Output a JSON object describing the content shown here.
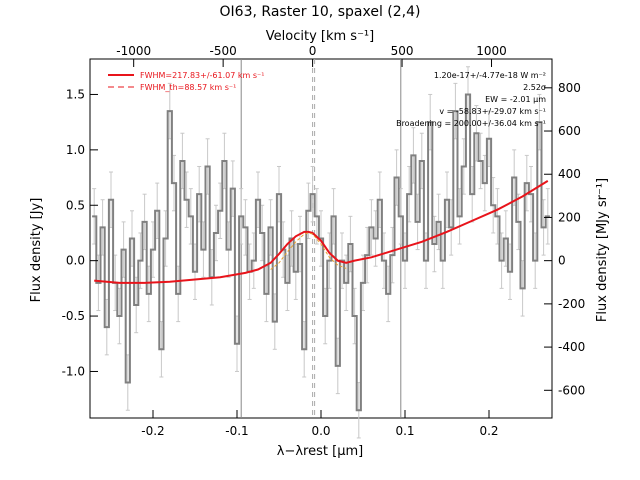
{
  "chart_data": {
    "type": "line",
    "title": "OI63, Raster 10, spaxel (2,4)",
    "xlabel": "λ−λrest [μm]",
    "ylabel_left": "Flux density [Jy]",
    "ylabel_right": "Flux density [MJy sr⁻¹]",
    "xlabel_top": "Velocity [km s⁻¹]",
    "xlim": [
      -0.275,
      0.275
    ],
    "ylim": [
      -1.42,
      1.82
    ],
    "top_velocity_ticks": [
      -1000,
      -500,
      0,
      500,
      1000
    ],
    "right_ticks": [
      -600,
      -400,
      -200,
      0,
      200,
      400,
      600,
      800
    ],
    "x_ticks": [
      -0.2,
      -0.1,
      0.0,
      0.1,
      0.2
    ],
    "y_ticks": [
      -1.0,
      -0.5,
      0.0,
      0.5,
      1.0,
      1.5
    ],
    "vertical_lines": [
      -0.095,
      0.095
    ],
    "legend": [
      {
        "label": "FWHM=217.83+/-61.07 km s⁻¹",
        "style": "solid",
        "color": "#e8141b"
      },
      {
        "label": "FWHM_th=88.57 km s⁻¹",
        "style": "dashed",
        "color": "#e8141b"
      }
    ],
    "annotations": [
      "1.20e-17+/-4.77e-18 W m⁻²",
      "2.52σ",
      "EW = -2.01 μm",
      "v = -58.83+/-29.07 km s⁻¹",
      "Broadening = 200.00+/-36.04 km s⁻¹"
    ],
    "series": [
      {
        "name": "data",
        "x": [
          -0.27,
          -0.265,
          -0.26,
          -0.255,
          -0.25,
          -0.245,
          -0.24,
          -0.235,
          -0.23,
          -0.225,
          -0.22,
          -0.215,
          -0.21,
          -0.205,
          -0.2,
          -0.195,
          -0.19,
          -0.185,
          -0.18,
          -0.175,
          -0.17,
          -0.165,
          -0.16,
          -0.155,
          -0.15,
          -0.145,
          -0.14,
          -0.135,
          -0.13,
          -0.125,
          -0.12,
          -0.115,
          -0.11,
          -0.105,
          -0.1,
          -0.095,
          -0.09,
          -0.085,
          -0.08,
          -0.075,
          -0.07,
          -0.065,
          -0.06,
          -0.055,
          -0.05,
          -0.045,
          -0.04,
          -0.035,
          -0.03,
          -0.025,
          -0.02,
          -0.015,
          -0.01,
          -0.005,
          0.0,
          0.005,
          0.01,
          0.015,
          0.02,
          0.025,
          0.03,
          0.035,
          0.04,
          0.045,
          0.05,
          0.055,
          0.06,
          0.065,
          0.07,
          0.075,
          0.08,
          0.085,
          0.09,
          0.095,
          0.1,
          0.105,
          0.11,
          0.115,
          0.12,
          0.125,
          0.13,
          0.135,
          0.14,
          0.145,
          0.15,
          0.155,
          0.16,
          0.165,
          0.17,
          0.175,
          0.18,
          0.185,
          0.19,
          0.195,
          0.2,
          0.205,
          0.21,
          0.215,
          0.22,
          0.225,
          0.23,
          0.235,
          0.24,
          0.245,
          0.25,
          0.255,
          0.26,
          0.265,
          0.27
        ],
        "y": [
          0.4,
          -0.2,
          0.3,
          -0.6,
          0.55,
          -0.2,
          -0.5,
          0.1,
          -1.1,
          0.2,
          -0.4,
          0.0,
          0.35,
          -0.3,
          0.1,
          0.45,
          -0.8,
          0.2,
          1.35,
          0.7,
          -0.3,
          0.9,
          0.55,
          0.4,
          -0.1,
          0.6,
          0.1,
          0.85,
          -0.15,
          0.25,
          0.45,
          0.9,
          0.1,
          0.65,
          -0.75,
          0.4,
          0.3,
          -0.1,
          0.0,
          0.55,
          0.25,
          -0.3,
          0.3,
          -0.55,
          0.6,
          0.1,
          -0.2,
          0.2,
          -0.1,
          0.15,
          -0.8,
          0.45,
          0.6,
          0.4,
          0.2,
          -0.5,
          0.0,
          0.4,
          -0.95,
          0.0,
          -0.2,
          0.15,
          -0.5,
          -1.35,
          -0.2,
          0.05,
          0.3,
          0.2,
          0.55,
          0.0,
          -0.3,
          0.05,
          0.75,
          0.4,
          0.0,
          0.6,
          0.95,
          0.35,
          0.9,
          0.0,
          1.25,
          0.15,
          0.35,
          0.0,
          0.55,
          0.3,
          1.35,
          0.4,
          0.85,
          1.5,
          0.6,
          1.15,
          0.9,
          0.7,
          1.1,
          0.5,
          0.4,
          0.0,
          0.2,
          -0.1,
          0.75,
          0.35,
          -0.25,
          0.7,
          0.6,
          0.0,
          1.25,
          0.3,
          0.4
        ],
        "err": 0.25,
        "color": "#808080"
      },
      {
        "name": "fit",
        "x": [
          -0.27,
          -0.24,
          -0.21,
          -0.18,
          -0.15,
          -0.12,
          -0.09,
          -0.075,
          -0.06,
          -0.05,
          -0.04,
          -0.03,
          -0.02,
          -0.015,
          -0.01,
          0.0,
          0.01,
          0.02,
          0.03,
          0.04,
          0.06,
          0.09,
          0.12,
          0.15,
          0.18,
          0.21,
          0.24,
          0.27
        ],
        "y": [
          -0.18,
          -0.2,
          -0.2,
          -0.19,
          -0.17,
          -0.15,
          -0.11,
          -0.08,
          -0.02,
          0.06,
          0.15,
          0.22,
          0.26,
          0.26,
          0.25,
          0.18,
          0.07,
          0.0,
          -0.02,
          0.0,
          0.03,
          0.1,
          0.17,
          0.26,
          0.36,
          0.46,
          0.58,
          0.72
        ],
        "color": "#e8141b"
      },
      {
        "name": "line-only",
        "x": [
          -0.06,
          -0.05,
          -0.04,
          -0.03,
          -0.02,
          -0.015,
          -0.01,
          0.0,
          0.01,
          0.02,
          0.03
        ],
        "y": [
          -0.08,
          -0.02,
          0.08,
          0.17,
          0.24,
          0.25,
          0.24,
          0.15,
          0.03,
          -0.04,
          -0.07
        ],
        "color": "#e8a030"
      }
    ]
  }
}
